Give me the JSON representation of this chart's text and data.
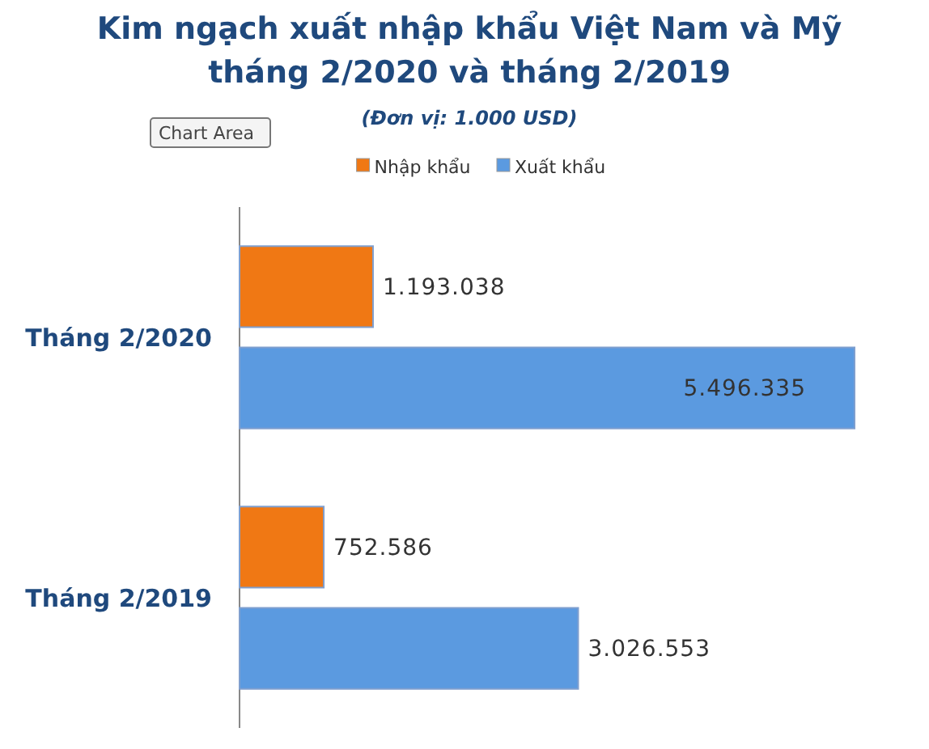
{
  "chart_data": {
    "type": "bar",
    "orientation": "horizontal",
    "title": "Kim ngạch xuất nhập khẩu Việt Nam và Mỹ\ntháng 2/2020 và tháng 2/2019",
    "subtitle": "(Đơn vị: 1.000 USD)",
    "annotations": [
      "Chart Area"
    ],
    "categories": [
      "Tháng 2/2020",
      "Tháng 2/2019"
    ],
    "legend": "top",
    "series": [
      {
        "name": "Nhập khẩu",
        "color": "#f07814",
        "values": [
          1193038,
          752586
        ],
        "value_labels": [
          "1.193.038",
          "752.586"
        ]
      },
      {
        "name": "Xuất khẩu",
        "color": "#5b9ae0",
        "values": [
          5496335,
          3026553
        ],
        "value_labels": [
          "5.496.335",
          "3.026.553"
        ]
      }
    ]
  }
}
